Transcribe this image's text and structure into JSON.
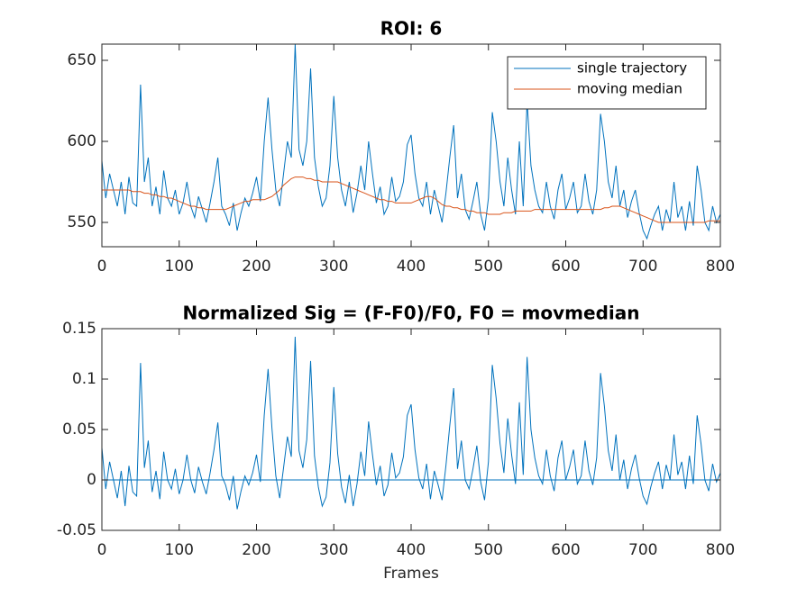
{
  "chart_data": [
    {
      "type": "line",
      "title": "ROI: 6",
      "x": [
        0,
        5,
        10,
        15,
        20,
        25,
        30,
        35,
        40,
        45,
        50,
        55,
        60,
        65,
        70,
        75,
        80,
        85,
        90,
        95,
        100,
        105,
        110,
        115,
        120,
        125,
        130,
        135,
        140,
        145,
        150,
        155,
        160,
        165,
        170,
        175,
        180,
        185,
        190,
        195,
        200,
        205,
        210,
        215,
        220,
        225,
        230,
        235,
        240,
        245,
        250,
        255,
        260,
        265,
        270,
        275,
        280,
        285,
        290,
        295,
        300,
        305,
        310,
        315,
        320,
        325,
        330,
        335,
        340,
        345,
        350,
        355,
        360,
        365,
        370,
        375,
        380,
        385,
        390,
        395,
        400,
        405,
        410,
        415,
        420,
        425,
        430,
        435,
        440,
        445,
        450,
        455,
        460,
        465,
        470,
        475,
        480,
        485,
        490,
        495,
        500,
        505,
        510,
        515,
        520,
        525,
        530,
        535,
        540,
        545,
        550,
        555,
        560,
        565,
        570,
        575,
        580,
        585,
        590,
        595,
        600,
        605,
        610,
        615,
        620,
        625,
        630,
        635,
        640,
        645,
        650,
        655,
        660,
        665,
        670,
        675,
        680,
        685,
        690,
        695,
        700,
        705,
        710,
        715,
        720,
        725,
        730,
        735,
        740,
        745,
        750,
        755,
        760,
        765,
        770,
        775,
        780,
        785,
        790,
        795,
        800
      ],
      "series": [
        {
          "name": "single trajectory",
          "color": "#0072BD",
          "values": [
            588,
            565,
            580,
            570,
            560,
            575,
            555,
            578,
            562,
            560,
            635,
            575,
            590,
            560,
            572,
            555,
            582,
            565,
            560,
            570,
            555,
            562,
            575,
            560,
            553,
            566,
            558,
            550,
            562,
            575,
            590,
            560,
            555,
            548,
            562,
            545,
            556,
            565,
            560,
            568,
            578,
            563,
            600,
            627,
            595,
            570,
            560,
            580,
            600,
            590,
            660,
            595,
            585,
            600,
            645,
            590,
            572,
            560,
            565,
            585,
            628,
            590,
            570,
            560,
            575,
            556,
            568,
            585,
            570,
            600,
            580,
            562,
            572,
            555,
            560,
            578,
            563,
            566,
            575,
            598,
            604,
            580,
            565,
            560,
            575,
            555,
            570,
            560,
            550,
            568,
            590,
            610,
            565,
            580,
            558,
            552,
            563,
            575,
            555,
            545,
            565,
            618,
            600,
            575,
            560,
            590,
            570,
            555,
            600,
            560,
            625,
            585,
            570,
            560,
            556,
            575,
            560,
            552,
            570,
            580,
            558,
            565,
            575,
            556,
            560,
            580,
            563,
            555,
            570,
            617,
            600,
            575,
            565,
            585,
            560,
            570,
            553,
            563,
            570,
            556,
            545,
            540,
            548,
            555,
            560,
            545,
            558,
            550,
            575,
            553,
            560,
            545,
            563,
            548,
            585,
            570,
            550,
            545,
            560,
            550,
            555
          ]
        },
        {
          "name": "moving median",
          "color": "#D95319",
          "values": [
            570,
            570,
            570,
            570,
            570,
            570,
            570,
            570,
            569,
            569,
            569,
            568,
            568,
            567,
            567,
            566,
            566,
            565,
            565,
            564,
            563,
            562,
            561,
            560,
            560,
            559,
            559,
            558,
            558,
            558,
            558,
            558,
            558,
            559,
            560,
            561,
            562,
            563,
            563,
            564,
            564,
            564,
            564,
            565,
            566,
            568,
            570,
            573,
            575,
            577,
            578,
            578,
            578,
            577,
            577,
            576,
            576,
            575,
            575,
            575,
            575,
            575,
            574,
            573,
            572,
            571,
            570,
            569,
            568,
            567,
            566,
            565,
            564,
            564,
            563,
            563,
            562,
            562,
            562,
            562,
            562,
            563,
            564,
            565,
            566,
            566,
            565,
            563,
            561,
            560,
            560,
            559,
            559,
            558,
            558,
            557,
            557,
            556,
            556,
            556,
            555,
            555,
            555,
            555,
            556,
            556,
            556,
            557,
            557,
            557,
            557,
            557,
            558,
            558,
            558,
            558,
            558,
            558,
            558,
            558,
            558,
            558,
            558,
            558,
            558,
            558,
            558,
            558,
            558,
            558,
            559,
            559,
            560,
            560,
            560,
            559,
            558,
            557,
            556,
            555,
            554,
            553,
            552,
            551,
            550,
            550,
            550,
            550,
            550,
            550,
            550,
            550,
            550,
            550,
            550,
            550,
            550,
            551,
            551,
            551,
            551
          ]
        }
      ],
      "xlim": [
        0,
        800
      ],
      "xticks": [
        0,
        100,
        200,
        300,
        400,
        500,
        600,
        700,
        800
      ],
      "ylim": [
        535,
        660
      ],
      "yticks": [
        550,
        600,
        650
      ],
      "legend": "northeast"
    },
    {
      "type": "line",
      "title": "Normalized Sig = (F-F0)/F0, F0 = movmedian",
      "xlabel": "Frames",
      "x": [
        0,
        5,
        10,
        15,
        20,
        25,
        30,
        35,
        40,
        45,
        50,
        55,
        60,
        65,
        70,
        75,
        80,
        85,
        90,
        95,
        100,
        105,
        110,
        115,
        120,
        125,
        130,
        135,
        140,
        145,
        150,
        155,
        160,
        165,
        170,
        175,
        180,
        185,
        190,
        195,
        200,
        205,
        210,
        215,
        220,
        225,
        230,
        235,
        240,
        245,
        250,
        255,
        260,
        265,
        270,
        275,
        280,
        285,
        290,
        295,
        300,
        305,
        310,
        315,
        320,
        325,
        330,
        335,
        340,
        345,
        350,
        355,
        360,
        365,
        370,
        375,
        380,
        385,
        390,
        395,
        400,
        405,
        410,
        415,
        420,
        425,
        430,
        435,
        440,
        445,
        450,
        455,
        460,
        465,
        470,
        475,
        480,
        485,
        490,
        495,
        500,
        505,
        510,
        515,
        520,
        525,
        530,
        535,
        540,
        545,
        550,
        555,
        560,
        565,
        570,
        575,
        580,
        585,
        590,
        595,
        600,
        605,
        610,
        615,
        620,
        625,
        630,
        635,
        640,
        645,
        650,
        655,
        660,
        665,
        670,
        675,
        680,
        685,
        690,
        695,
        700,
        705,
        710,
        715,
        720,
        725,
        730,
        735,
        740,
        745,
        750,
        755,
        760,
        765,
        770,
        775,
        780,
        785,
        790,
        795,
        800
      ],
      "series": [
        {
          "color": "#0072BD",
          "values": [
            0.032,
            -0.009,
            0.018,
            0,
            -0.018,
            0.009,
            -0.026,
            0.014,
            -0.012,
            -0.016,
            0.116,
            0.012,
            0.039,
            -0.012,
            0.009,
            -0.019,
            0.028,
            0,
            -0.009,
            0.011,
            -0.014,
            0,
            0.025,
            0,
            -0.013,
            0.013,
            -0.002,
            -0.014,
            0.007,
            0.03,
            0.057,
            0.004,
            -0.005,
            -0.02,
            0.004,
            -0.029,
            -0.011,
            0.004,
            -0.005,
            0.007,
            0.025,
            -0.002,
            0.064,
            0.11,
            0.051,
            0.004,
            -0.018,
            0.012,
            0.043,
            0.023,
            0.142,
            0.029,
            0.012,
            0.04,
            0.118,
            0.024,
            -0.007,
            -0.026,
            -0.017,
            0.017,
            0.092,
            0.026,
            -0.007,
            -0.023,
            0.005,
            -0.026,
            -0.004,
            0.028,
            0.004,
            0.058,
            0.025,
            -0.005,
            0.014,
            -0.016,
            -0.005,
            0.027,
            0.002,
            0.007,
            0.023,
            0.064,
            0.075,
            0.03,
            0.002,
            -0.009,
            0.016,
            -0.019,
            0.009,
            -0.005,
            -0.02,
            0.014,
            0.054,
            0.091,
            0.011,
            0.039,
            0,
            -0.009,
            0.011,
            0.034,
            -0.002,
            -0.02,
            0.018,
            0.114,
            0.081,
            0.036,
            0.007,
            0.061,
            0.025,
            -0.004,
            0.077,
            0.005,
            0.122,
            0.05,
            0.022,
            0.004,
            -0.004,
            0.03,
            0.004,
            -0.011,
            0.022,
            0.039,
            0,
            0.013,
            0.03,
            -0.004,
            0.004,
            0.039,
            0.009,
            -0.005,
            0.022,
            0.106,
            0.073,
            0.029,
            0.009,
            0.045,
            0,
            0.02,
            -0.009,
            0.011,
            0.025,
            0.002,
            -0.016,
            -0.024,
            -0.007,
            0.007,
            0.018,
            -0.009,
            0.015,
            0,
            0.045,
            0.005,
            0.018,
            -0.009,
            0.024,
            -0.004,
            0.064,
            0.036,
            0,
            -0.011,
            0.016,
            -0.002,
            0.007
          ]
        }
      ],
      "hline": 0,
      "xlim": [
        0,
        800
      ],
      "xticks": [
        0,
        100,
        200,
        300,
        400,
        500,
        600,
        700,
        800
      ],
      "ylim": [
        -0.05,
        0.15
      ],
      "yticks": [
        -0.05,
        0,
        0.05,
        0.1,
        0.15
      ]
    }
  ]
}
